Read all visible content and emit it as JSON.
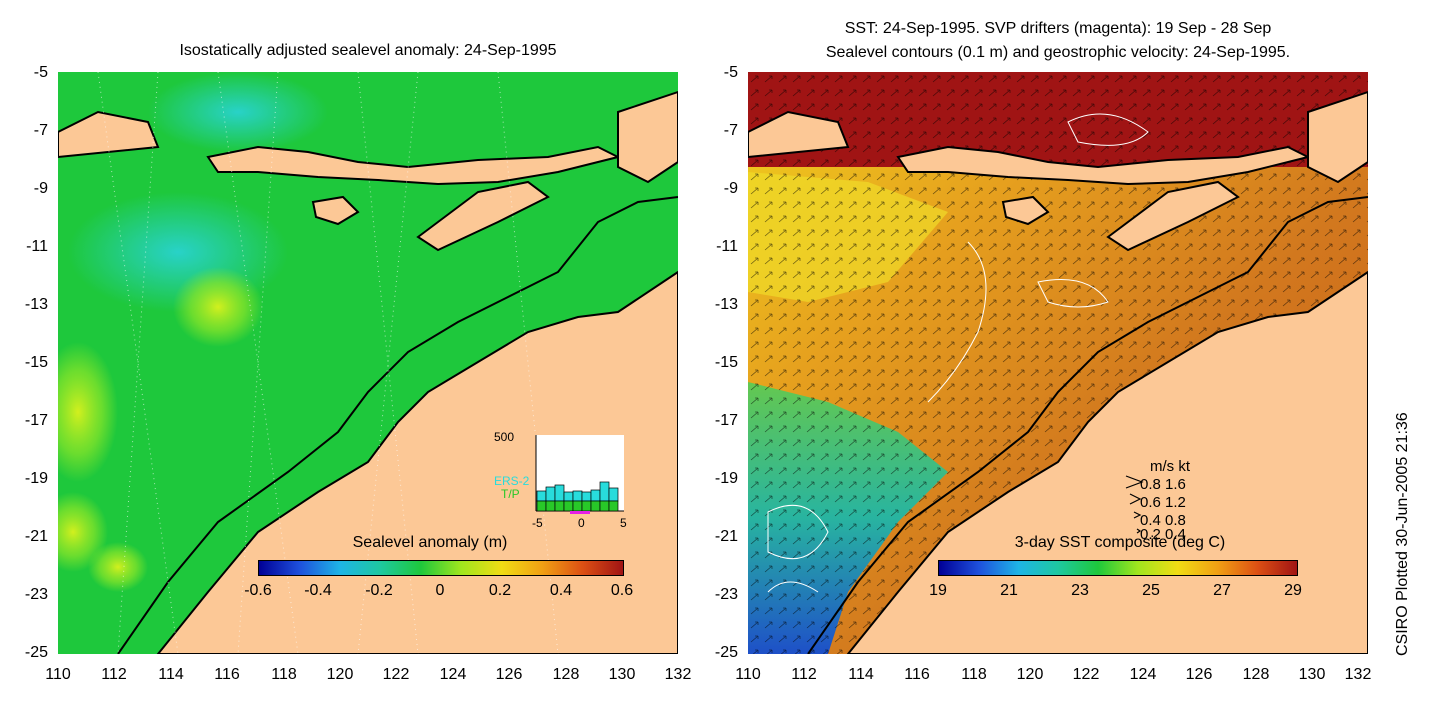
{
  "left_panel": {
    "title": "Isostatically adjusted sealevel anomaly: 24-Sep-1995",
    "y_ticks": [
      "-5",
      "-7",
      "-9",
      "-11",
      "-13",
      "-15",
      "-17",
      "-19",
      "-21",
      "-23",
      "-25"
    ],
    "x_ticks": [
      "110",
      "112",
      "114",
      "116",
      "118",
      "120",
      "122",
      "124",
      "126",
      "128",
      "130",
      "132"
    ],
    "colorbar": {
      "label": "Sealevel anomaly (m)",
      "ticks": [
        "-0.6",
        "-0.4",
        "-0.2",
        "0",
        "0.2",
        "0.4",
        "0.6"
      ]
    },
    "histogram": {
      "max_label": "500",
      "series_labels": [
        "ERS-2",
        "T/P"
      ],
      "x_ticks": [
        "-5",
        "0",
        "5"
      ]
    },
    "colors": {
      "ocean": "#1ec83c",
      "land": "#fcc896",
      "ers2": "#28dcdc",
      "tp": "#28c828",
      "magenta": "#e61ee6"
    }
  },
  "right_panel": {
    "title_line1": "SST: 24-Sep-1995. SVP drifters (magenta): 19 Sep - 28 Sep",
    "title_line2": "Sealevel contours (0.1 m) and geostrophic velocity: 24-Sep-1995.",
    "y_ticks": [
      "-5",
      "-7",
      "-9",
      "-11",
      "-13",
      "-15",
      "-17",
      "-19",
      "-21",
      "-23",
      "-25"
    ],
    "x_ticks": [
      "110",
      "112",
      "114",
      "116",
      "118",
      "120",
      "122",
      "124",
      "126",
      "128",
      "130",
      "132"
    ],
    "colorbar": {
      "label": "3-day SST composite (deg C)",
      "ticks": [
        "19",
        "21",
        "23",
        "25",
        "27",
        "29"
      ]
    },
    "velocity_legend": {
      "header": "m/s  kt",
      "rows": [
        "0.8  1.6",
        "0.6  1.2",
        "0.4  0.8",
        "0.2  0.4"
      ]
    },
    "colors": {
      "land": "#fcc896",
      "warm": "#c85a14",
      "hot": "#a01414",
      "mid": "#e6b400",
      "cool": "#28b464"
    }
  },
  "side_label": "CSIRO Plotted 30-Jun-2005 21:36"
}
